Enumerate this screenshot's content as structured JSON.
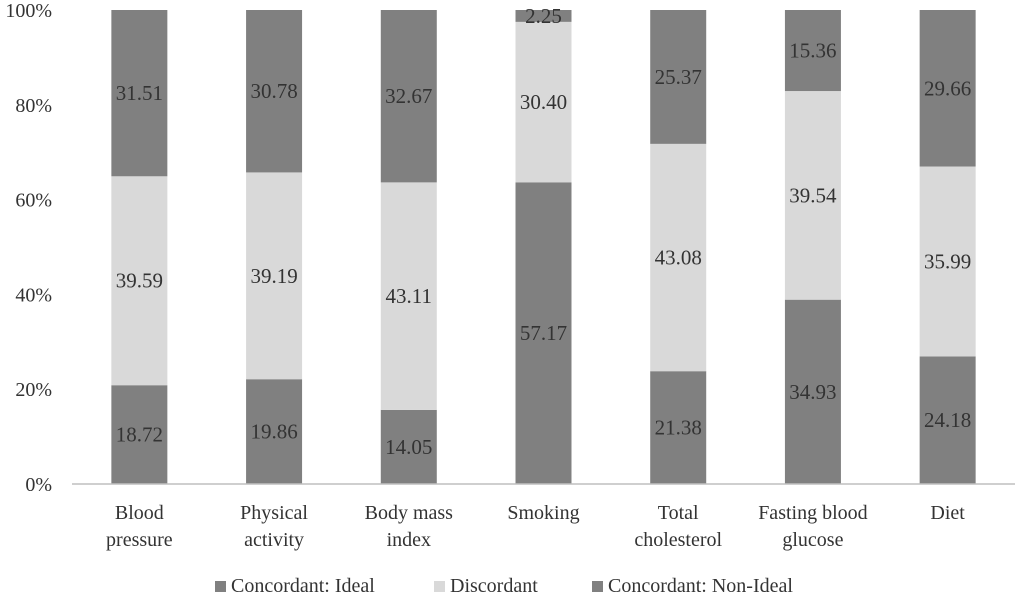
{
  "chart_data": {
    "type": "bar",
    "stacked": true,
    "percent_stacked": true,
    "categories": [
      [
        "Blood",
        "pressure"
      ],
      [
        "Physical",
        "activity"
      ],
      [
        "Body mass",
        "index"
      ],
      [
        "Smoking"
      ],
      [
        "Total",
        "cholesterol"
      ],
      [
        "Fasting blood",
        "glucose"
      ],
      [
        "Diet"
      ]
    ],
    "series": [
      {
        "name": "Concordant: Ideal",
        "color": "#808080",
        "values": [
          18.72,
          19.86,
          14.05,
          57.17,
          21.38,
          34.93,
          24.18
        ]
      },
      {
        "name": "Discordant",
        "color": "#d9d9d9",
        "values": [
          39.59,
          39.19,
          43.11,
          30.4,
          43.08,
          39.54,
          35.99
        ]
      },
      {
        "name": "Concordant: Non-Ideal",
        "color": "#808080",
        "values": [
          31.51,
          30.78,
          32.67,
          2.25,
          25.37,
          15.36,
          29.66
        ]
      }
    ],
    "y_ticks": [
      "0%",
      "20%",
      "40%",
      "60%",
      "80%",
      "100%"
    ],
    "ylim": [
      0,
      100
    ],
    "title": "",
    "xlabel": "",
    "ylabel": "",
    "grid": false,
    "legend_position": "bottom"
  }
}
